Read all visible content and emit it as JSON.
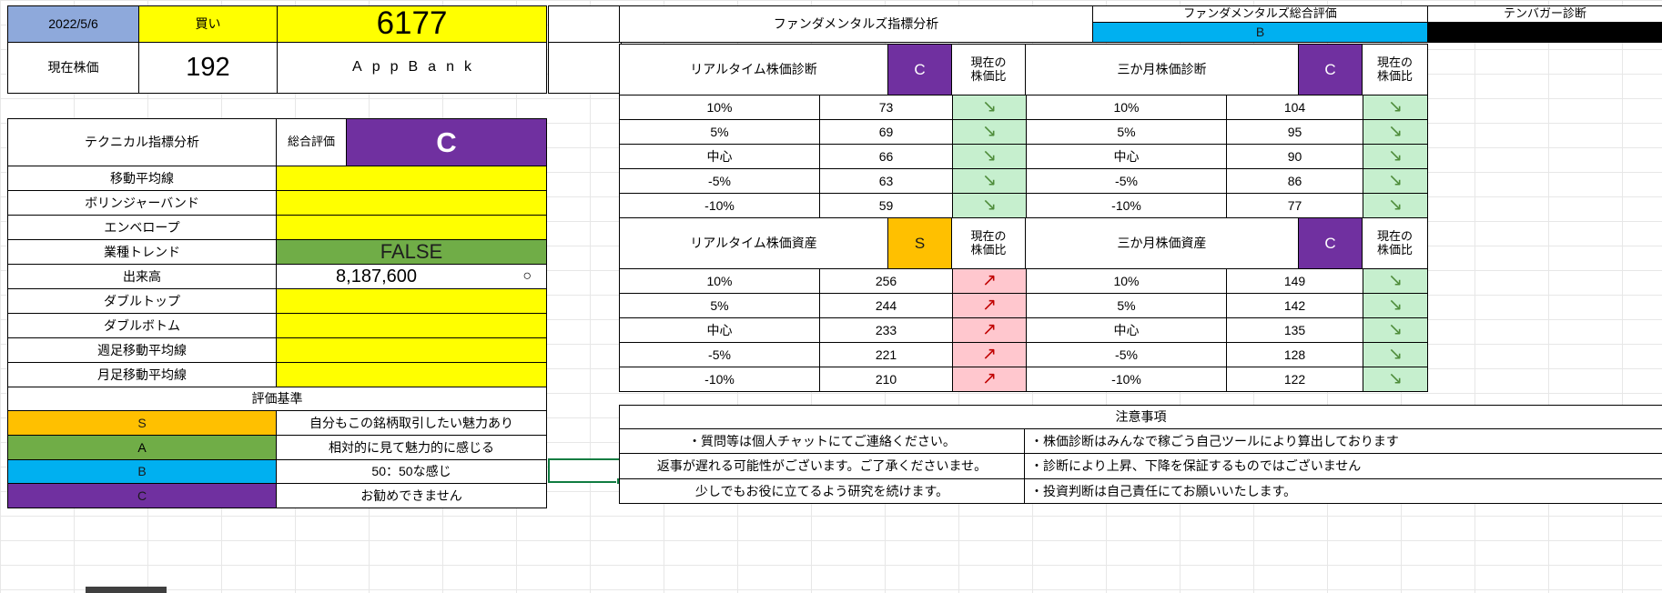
{
  "header": {
    "date": "2022/5/6",
    "signal": "買い",
    "stock_code": "6177",
    "price_label": "現在株価",
    "price": "192",
    "company": "AppBank"
  },
  "technical": {
    "title": "テクニカル指標分析",
    "overall_label": "総合評価",
    "overall_grade": "C",
    "overall_color": "#7030A0",
    "rows": [
      {
        "label": "移動平均線",
        "value": ""
      },
      {
        "label": "ボリンジャーバンド",
        "value": ""
      },
      {
        "label": "エンベロープ",
        "value": ""
      },
      {
        "label": "業種トレンド",
        "value": "FALSE"
      },
      {
        "label": "出来高",
        "value": "8,187,600",
        "mark": "○"
      },
      {
        "label": "ダブルトップ",
        "value": ""
      },
      {
        "label": "ダブルボトム",
        "value": ""
      },
      {
        "label": "週足移動平均線",
        "value": ""
      },
      {
        "label": "月足移動平均線",
        "value": ""
      }
    ]
  },
  "criteria": {
    "title": "評価基準",
    "rows": [
      {
        "grade": "S",
        "desc": "自分もこの銘柄取引したい魅力あり",
        "color": "#FFC000"
      },
      {
        "grade": "A",
        "desc": "相対的に見て魅力的に感じる",
        "color": "#70AD47"
      },
      {
        "grade": "B",
        "desc": "50：50な感じ",
        "color": "#00B0F0"
      },
      {
        "grade": "C",
        "desc": "お勧めできません",
        "color": "#7030A0"
      }
    ]
  },
  "fundamental": {
    "title": "ファンダメンタルズ指標分析",
    "overall_label": "ファンダメンタルズ総合評価",
    "overall_grade": "B",
    "overall_color": "#00B0F0",
    "tenbagger_label": "テンバガー診断",
    "ratio_line1": "現在の",
    "ratio_line2": "株価比",
    "tables": [
      {
        "title": "リアルタイム株価診断",
        "grade": "C",
        "grade_color": "#7030A0",
        "rows": [
          {
            "label": "10%",
            "value": "73",
            "arrow": "↘"
          },
          {
            "label": "5%",
            "value": "69",
            "arrow": "↘"
          },
          {
            "label": "中心",
            "value": "66",
            "arrow": "↘"
          },
          {
            "label": "-5%",
            "value": "63",
            "arrow": "↘"
          },
          {
            "label": "-10%",
            "value": "59",
            "arrow": "↘"
          }
        ]
      },
      {
        "title": "三か月株価診断",
        "grade": "C",
        "grade_color": "#7030A0",
        "rows": [
          {
            "label": "10%",
            "value": "104",
            "arrow": "↘"
          },
          {
            "label": "5%",
            "value": "95",
            "arrow": "↘"
          },
          {
            "label": "中心",
            "value": "90",
            "arrow": "↘"
          },
          {
            "label": "-5%",
            "value": "86",
            "arrow": "↘"
          },
          {
            "label": "-10%",
            "value": "77",
            "arrow": "↘"
          }
        ]
      },
      {
        "title": "リアルタイム株価資産",
        "grade": "S",
        "grade_color": "#FFC000",
        "rows": [
          {
            "label": "10%",
            "value": "256",
            "arrow": "↗"
          },
          {
            "label": "5%",
            "value": "244",
            "arrow": "↗"
          },
          {
            "label": "中心",
            "value": "233",
            "arrow": "↗"
          },
          {
            "label": "-5%",
            "value": "221",
            "arrow": "↗"
          },
          {
            "label": "-10%",
            "value": "210",
            "arrow": "↗"
          }
        ]
      },
      {
        "title": "三か月株価資産",
        "grade": "C",
        "grade_color": "#7030A0",
        "rows": [
          {
            "label": "10%",
            "value": "149",
            "arrow": "↘"
          },
          {
            "label": "5%",
            "value": "142",
            "arrow": "↘"
          },
          {
            "label": "中心",
            "value": "135",
            "arrow": "↘"
          },
          {
            "label": "-5%",
            "value": "128",
            "arrow": "↘"
          },
          {
            "label": "-10%",
            "value": "122",
            "arrow": "↘"
          }
        ]
      }
    ]
  },
  "notes": {
    "title": "注意事項",
    "left": [
      "・質問等は個人チャットにてご連絡ください。",
      "返事が遅れる可能性がございます。ご了承くださいませ。",
      "少しでもお役に立てるよう研究を続けます。"
    ],
    "right": [
      "・株価診断はみんなで稼ごう自己ツールにより算出しております",
      "・診断により上昇、下降を保証するものではございません",
      "・投資判断は自己責任にてお願いいたします。"
    ]
  },
  "colors": {
    "buy_yellow": "#FFFF00",
    "date_blue": "#8EA9DB",
    "trend_up_bg": "#FFC7CE",
    "trend_down_bg": "#C6EFCE",
    "sector_green": "#70AD47"
  }
}
